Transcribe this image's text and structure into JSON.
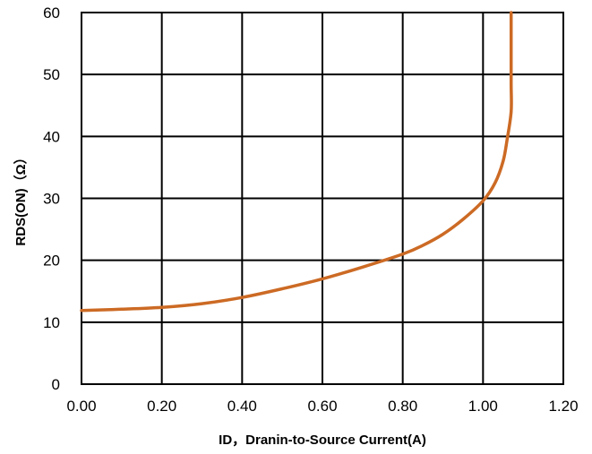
{
  "chart_data": {
    "type": "line",
    "xlabel": "ID，Dranin-to-Source Current(A)",
    "ylabel": "RDS(ON)（Ω）",
    "xlim": [
      0,
      1.2
    ],
    "ylim": [
      0,
      60
    ],
    "x_ticks": [
      "0.00",
      "0.20",
      "0.40",
      "0.60",
      "0.80",
      "1.00",
      "1.20"
    ],
    "y_ticks": [
      "0",
      "10",
      "20",
      "30",
      "40",
      "50",
      "60"
    ],
    "grid": true,
    "colors": {
      "series": "#cc6a24",
      "grid": "#000000"
    },
    "series": [
      {
        "x": [
          0.0,
          0.1,
          0.2,
          0.3,
          0.4,
          0.5,
          0.6,
          0.7,
          0.8,
          0.85,
          0.9,
          0.95,
          1.0,
          1.03,
          1.05,
          1.06,
          1.07,
          1.07,
          1.07,
          1.07
        ],
        "y": [
          11.9,
          12.1,
          12.4,
          13.0,
          14.0,
          15.4,
          17.0,
          18.9,
          21.0,
          22.4,
          24.2,
          26.6,
          29.6,
          32.5,
          36.0,
          39.5,
          44.0,
          48.5,
          54.0,
          60.0
        ]
      }
    ]
  }
}
